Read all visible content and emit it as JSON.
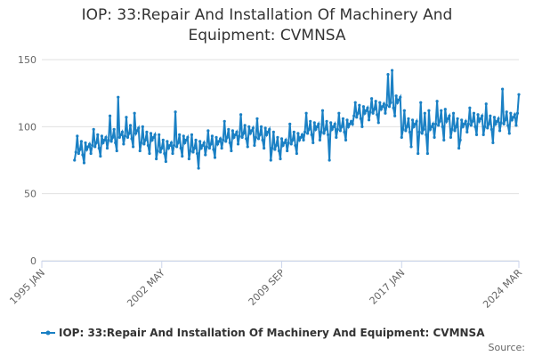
{
  "chart_data": {
    "type": "line",
    "title": "IOP: 33:Repair And Installation Of Machinery And Equipment: CVMNSA",
    "source_label": "Source:",
    "xlim": [
      "1995-01",
      "2024-03"
    ],
    "xticks": [
      {
        "value": "1995-01",
        "label": "1995 JAN"
      },
      {
        "value": "2002-05",
        "label": "2002 MAY"
      },
      {
        "value": "2009-09",
        "label": "2009 SEP"
      },
      {
        "value": "2017-01",
        "label": "2017 JAN"
      },
      {
        "value": "2024-03",
        "label": "2024 MAR"
      }
    ],
    "ylim": [
      0,
      150
    ],
    "yticks": [
      0,
      50,
      100,
      150
    ],
    "grid": true,
    "x": [
      "1997-01",
      "1997-02",
      "1997-03",
      "1997-04",
      "1997-05",
      "1997-06",
      "1997-07",
      "1997-08",
      "1997-09",
      "1997-10",
      "1997-11",
      "1997-12",
      "1998-01",
      "1998-02",
      "1998-03",
      "1998-04",
      "1998-05",
      "1998-06",
      "1998-07",
      "1998-08",
      "1998-09",
      "1998-10",
      "1998-11",
      "1998-12",
      "1999-01",
      "1999-02",
      "1999-03",
      "1999-04",
      "1999-05",
      "1999-06",
      "1999-07",
      "1999-08",
      "1999-09",
      "1999-10",
      "1999-11",
      "1999-12",
      "2000-01",
      "2000-02",
      "2000-03",
      "2000-04",
      "2000-05",
      "2000-06",
      "2000-07",
      "2000-08",
      "2000-09",
      "2000-10",
      "2000-11",
      "2000-12",
      "2001-01",
      "2001-02",
      "2001-03",
      "2001-04",
      "2001-05",
      "2001-06",
      "2001-07",
      "2001-08",
      "2001-09",
      "2001-10",
      "2001-11",
      "2001-12",
      "2002-01",
      "2002-02",
      "2002-03",
      "2002-04",
      "2002-05",
      "2002-06",
      "2002-07",
      "2002-08",
      "2002-09",
      "2002-10",
      "2002-11",
      "2002-12",
      "2003-01",
      "2003-02",
      "2003-03",
      "2003-04",
      "2003-05",
      "2003-06",
      "2003-07",
      "2003-08",
      "2003-09",
      "2003-10",
      "2003-11",
      "2003-12",
      "2004-01",
      "2004-02",
      "2004-03",
      "2004-04",
      "2004-05",
      "2004-06",
      "2004-07",
      "2004-08",
      "2004-09",
      "2004-10",
      "2004-11",
      "2004-12",
      "2005-01",
      "2005-02",
      "2005-03",
      "2005-04",
      "2005-05",
      "2005-06",
      "2005-07",
      "2005-08",
      "2005-09",
      "2005-10",
      "2005-11",
      "2005-12",
      "2006-01",
      "2006-02",
      "2006-03",
      "2006-04",
      "2006-05",
      "2006-06",
      "2006-07",
      "2006-08",
      "2006-09",
      "2006-10",
      "2006-11",
      "2006-12",
      "2007-01",
      "2007-02",
      "2007-03",
      "2007-04",
      "2007-05",
      "2007-06",
      "2007-07",
      "2007-08",
      "2007-09",
      "2007-10",
      "2007-11",
      "2007-12",
      "2008-01",
      "2008-02",
      "2008-03",
      "2008-04",
      "2008-05",
      "2008-06",
      "2008-07",
      "2008-08",
      "2008-09",
      "2008-10",
      "2008-11",
      "2008-12",
      "2009-01",
      "2009-02",
      "2009-03",
      "2009-04",
      "2009-05",
      "2009-06",
      "2009-07",
      "2009-08",
      "2009-09",
      "2009-10",
      "2009-11",
      "2009-12",
      "2010-01",
      "2010-02",
      "2010-03",
      "2010-04",
      "2010-05",
      "2010-06",
      "2010-07",
      "2010-08",
      "2010-09",
      "2010-10",
      "2010-11",
      "2010-12",
      "2011-01",
      "2011-02",
      "2011-03",
      "2011-04",
      "2011-05",
      "2011-06",
      "2011-07",
      "2011-08",
      "2011-09",
      "2011-10",
      "2011-11",
      "2011-12",
      "2012-01",
      "2012-02",
      "2012-03",
      "2012-04",
      "2012-05",
      "2012-06",
      "2012-07",
      "2012-08",
      "2012-09",
      "2012-10",
      "2012-11",
      "2012-12",
      "2013-01",
      "2013-02",
      "2013-03",
      "2013-04",
      "2013-05",
      "2013-06",
      "2013-07",
      "2013-08",
      "2013-09",
      "2013-10",
      "2013-11",
      "2013-12",
      "2014-01",
      "2014-02",
      "2014-03",
      "2014-04",
      "2014-05",
      "2014-06",
      "2014-07",
      "2014-08",
      "2014-09",
      "2014-10",
      "2014-11",
      "2014-12",
      "2015-01",
      "2015-02",
      "2015-03",
      "2015-04",
      "2015-05",
      "2015-06",
      "2015-07",
      "2015-08",
      "2015-09",
      "2015-10",
      "2015-11",
      "2015-12",
      "2016-01",
      "2016-02",
      "2016-03",
      "2016-04",
      "2016-05",
      "2016-06",
      "2016-07",
      "2016-08",
      "2016-09",
      "2016-10",
      "2016-11",
      "2016-12",
      "2017-01",
      "2017-02",
      "2017-03",
      "2017-04",
      "2017-05",
      "2017-06",
      "2017-07",
      "2017-08",
      "2017-09",
      "2017-10",
      "2017-11",
      "2017-12",
      "2018-01",
      "2018-02",
      "2018-03",
      "2018-04",
      "2018-05",
      "2018-06",
      "2018-07",
      "2018-08",
      "2018-09",
      "2018-10",
      "2018-11",
      "2018-12",
      "2019-01",
      "2019-02",
      "2019-03",
      "2019-04",
      "2019-05",
      "2019-06",
      "2019-07",
      "2019-08",
      "2019-09",
      "2019-10",
      "2019-11",
      "2019-12",
      "2020-01",
      "2020-02",
      "2020-03",
      "2020-04",
      "2020-05",
      "2020-06",
      "2020-07",
      "2020-08",
      "2020-09",
      "2020-10",
      "2020-11",
      "2020-12",
      "2021-01",
      "2021-02",
      "2021-03",
      "2021-04",
      "2021-05",
      "2021-06",
      "2021-07",
      "2021-08",
      "2021-09",
      "2021-10",
      "2021-11",
      "2021-12",
      "2022-01",
      "2022-02",
      "2022-03",
      "2022-04",
      "2022-05",
      "2022-06",
      "2022-07",
      "2022-08",
      "2022-09",
      "2022-10",
      "2022-11",
      "2022-12",
      "2023-01",
      "2023-02",
      "2023-03",
      "2023-04",
      "2023-05",
      "2023-06",
      "2023-07",
      "2023-08",
      "2023-09",
      "2023-10",
      "2023-11",
      "2023-12",
      "2024-01",
      "2024-02",
      "2024-03"
    ],
    "series": [
      {
        "name": "IOP: 33:Repair And Installation Of Machinery And Equipment: CVMNSA",
        "color": "#1a80c4",
        "values": [
          75,
          81,
          93,
          80,
          83,
          89,
          79,
          73,
          88,
          83,
          85,
          87,
          80,
          86,
          98,
          85,
          88,
          94,
          84,
          78,
          93,
          88,
          90,
          92,
          84,
          90,
          108,
          89,
          92,
          98,
          88,
          82,
          122,
          92,
          94,
          96,
          87,
          93,
          107,
          92,
          95,
          101,
          91,
          85,
          110,
          95,
          97,
          99,
          82,
          88,
          100,
          87,
          90,
          96,
          86,
          80,
          95,
          90,
          92,
          94,
          76,
          82,
          94,
          81,
          84,
          90,
          80,
          74,
          89,
          84,
          86,
          88,
          80,
          86,
          111,
          85,
          88,
          94,
          84,
          78,
          93,
          88,
          90,
          92,
          76,
          82,
          94,
          81,
          84,
          90,
          80,
          69,
          89,
          84,
          86,
          88,
          79,
          85,
          97,
          84,
          87,
          93,
          83,
          77,
          92,
          87,
          89,
          91,
          84,
          90,
          104,
          89,
          92,
          98,
          88,
          82,
          97,
          92,
          94,
          96,
          87,
          93,
          109,
          92,
          95,
          101,
          91,
          85,
          100,
          95,
          97,
          99,
          86,
          92,
          106,
          91,
          94,
          100,
          90,
          84,
          99,
          94,
          96,
          98,
          75,
          84,
          96,
          83,
          86,
          92,
          82,
          76,
          91,
          86,
          88,
          90,
          82,
          88,
          102,
          87,
          90,
          96,
          86,
          80,
          95,
          90,
          92,
          94,
          90,
          96,
          110,
          95,
          98,
          104,
          94,
          88,
          103,
          98,
          100,
          102,
          90,
          96,
          112,
          95,
          98,
          104,
          94,
          75,
          103,
          98,
          100,
          102,
          92,
          98,
          110,
          97,
          100,
          106,
          96,
          90,
          105,
          100,
          102,
          104,
          102,
          108,
          118,
          107,
          110,
          116,
          106,
          100,
          115,
          110,
          112,
          114,
          105,
          111,
          121,
          110,
          113,
          119,
          109,
          103,
          118,
          113,
          115,
          117,
          110,
          116,
          139,
          115,
          118,
          142,
          114,
          108,
          123,
          118,
          120,
          122,
          92,
          98,
          112,
          97,
          100,
          106,
          96,
          85,
          105,
          100,
          102,
          104,
          80,
          96,
          118,
          95,
          98,
          110,
          94,
          80,
          112,
          98,
          100,
          102,
          92,
          102,
          119,
          101,
          104,
          112,
          100,
          90,
          113,
          104,
          106,
          108,
          92,
          98,
          110,
          97,
          100,
          106,
          84,
          90,
          105,
          100,
          102,
          104,
          96,
          102,
          114,
          101,
          104,
          110,
          100,
          94,
          109,
          104,
          106,
          108,
          94,
          100,
          117,
          99,
          102,
          108,
          98,
          88,
          107,
          102,
          104,
          106,
          97,
          103,
          128,
          102,
          105,
          111,
          101,
          95,
          110,
          105,
          107,
          109,
          101,
          110,
          124
        ]
      }
    ]
  }
}
